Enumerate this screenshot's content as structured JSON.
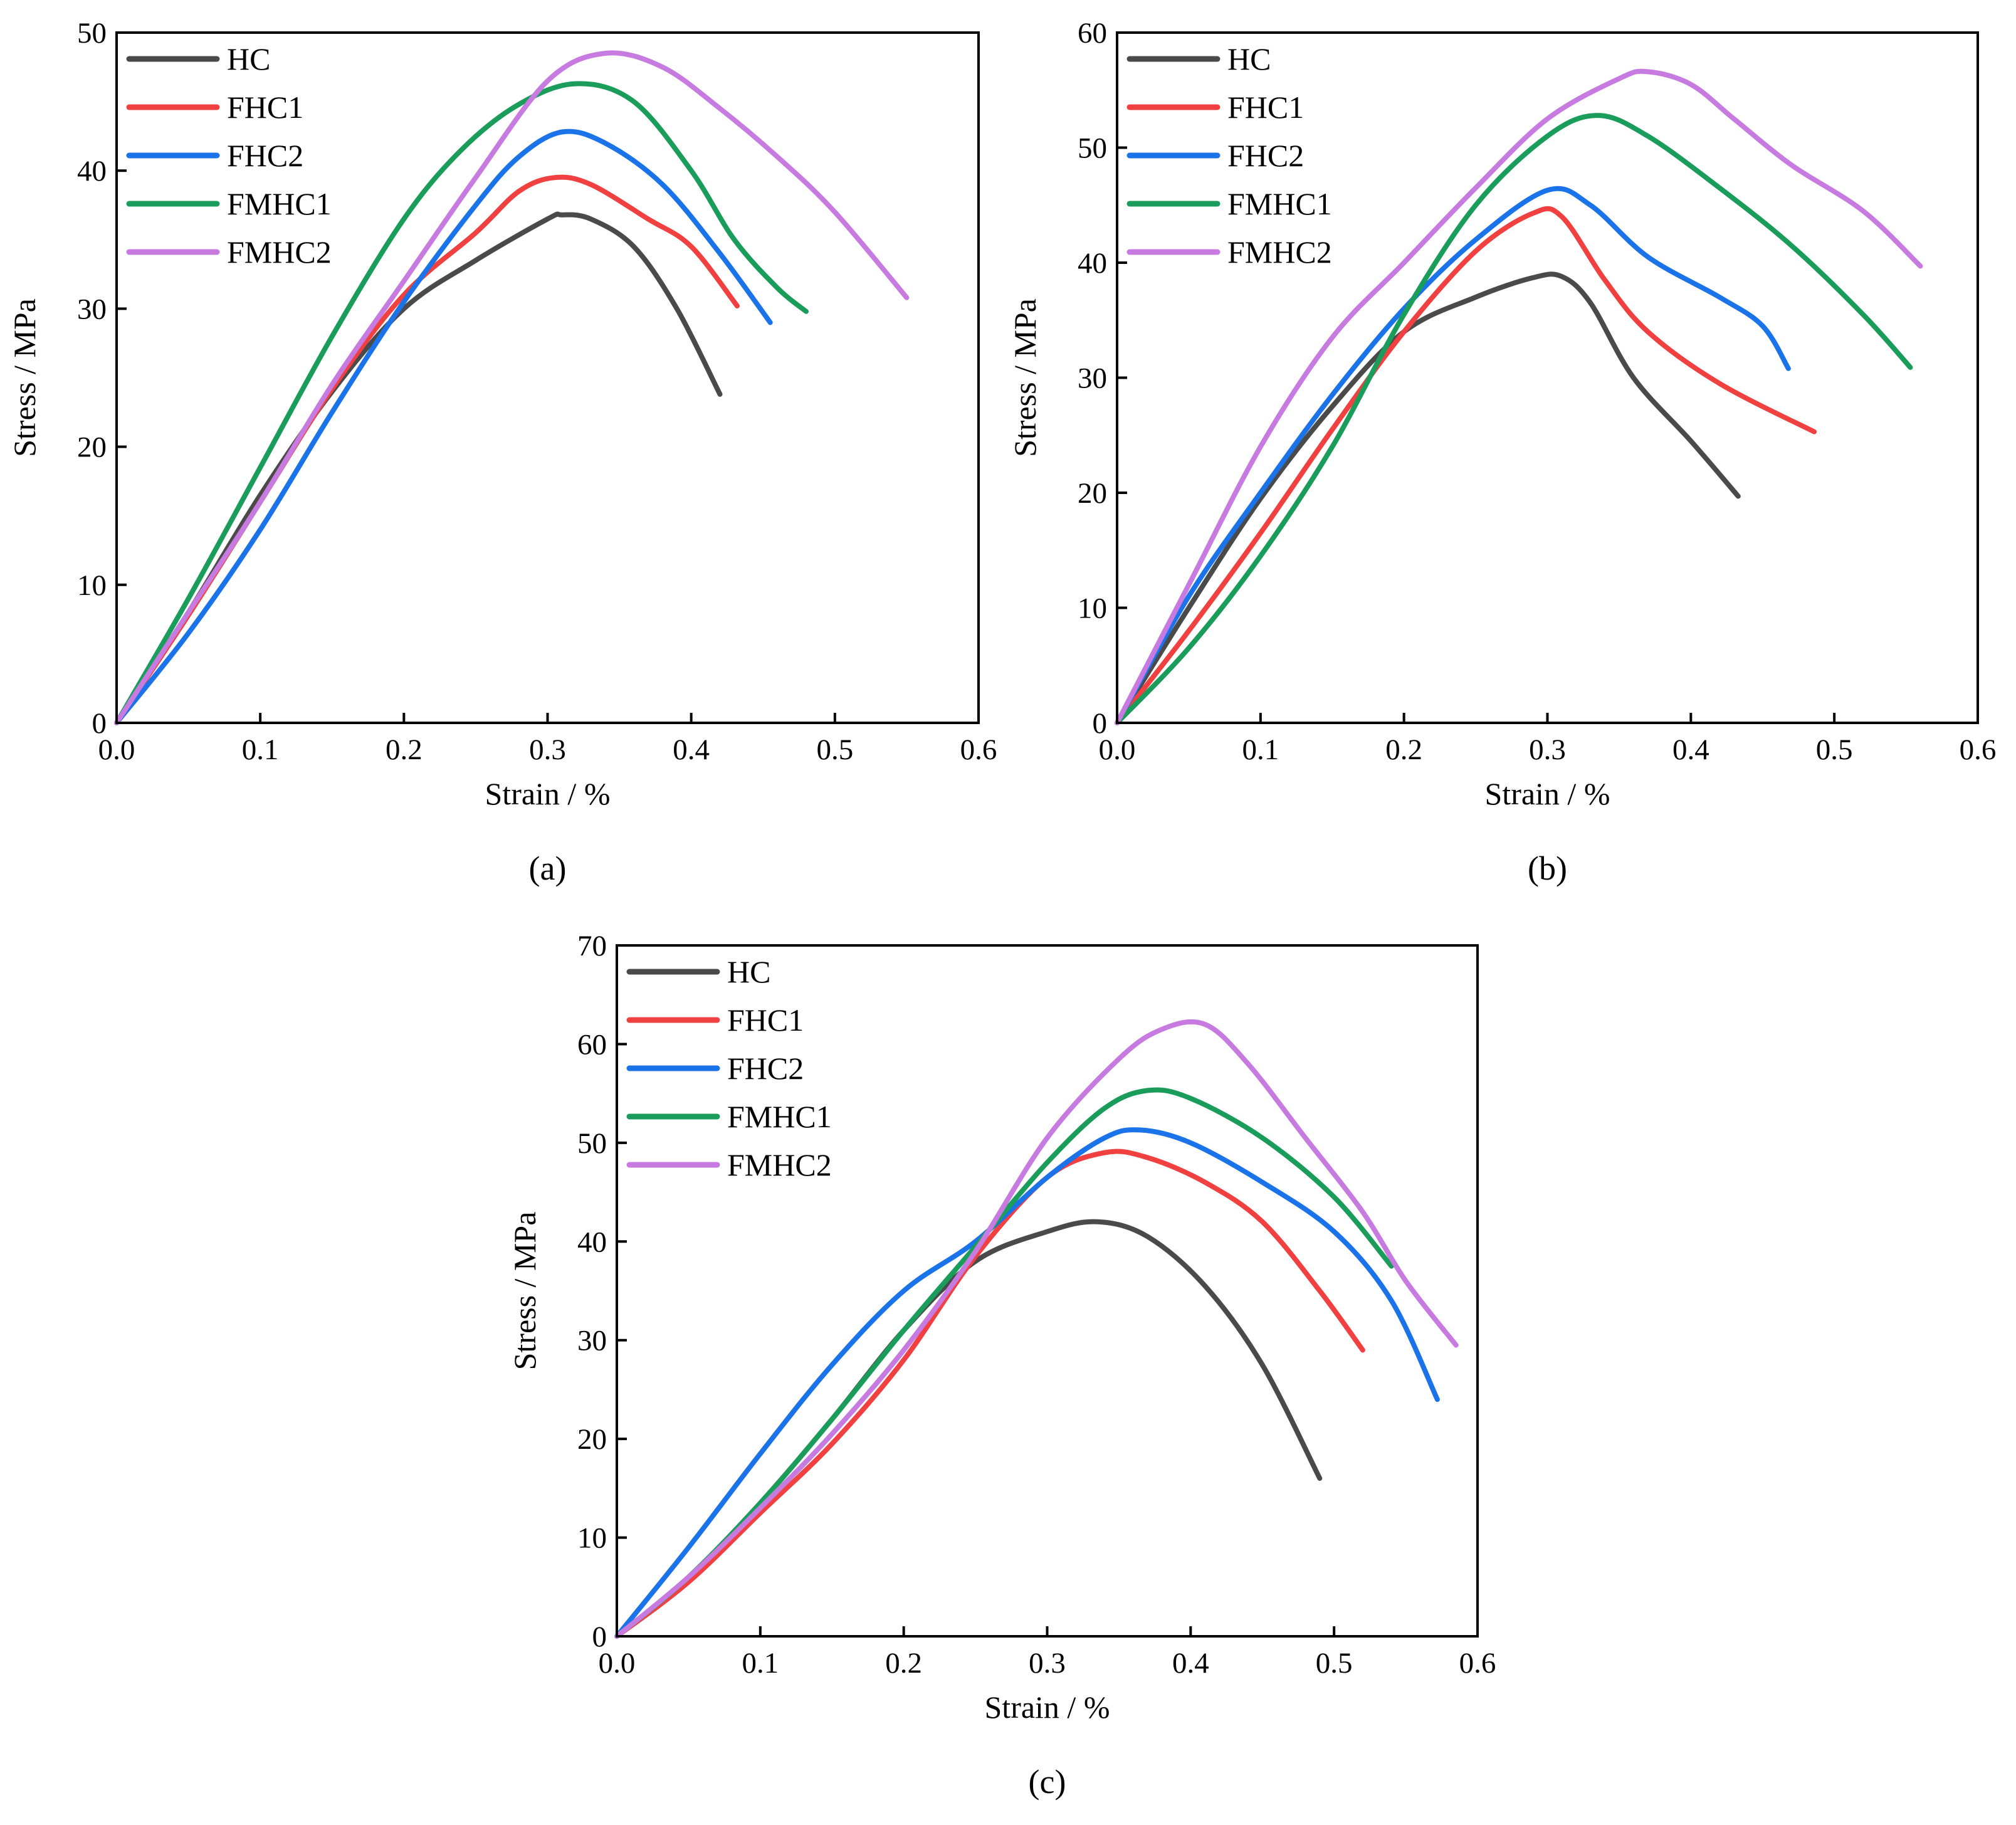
{
  "chart_data": [
    {
      "type": "line",
      "panel_label": "(a)",
      "xlabel": "Strain  / %",
      "ylabel": "Stress / MPa",
      "xlim": [
        0,
        0.6
      ],
      "ylim": [
        0,
        50
      ],
      "xticks": [
        0.0,
        0.1,
        0.2,
        0.3,
        0.4,
        0.5,
        0.6
      ],
      "yticks": [
        0,
        10,
        20,
        30,
        40,
        50
      ],
      "legend_position": "top-left",
      "series": [
        {
          "name": "HC",
          "color": "#4a4a4a",
          "points": [
            [
              0,
              0
            ],
            [
              0.05,
              8
            ],
            [
              0.1,
              16.5
            ],
            [
              0.15,
              24
            ],
            [
              0.2,
              30
            ],
            [
              0.25,
              33.5
            ],
            [
              0.3,
              36.5
            ],
            [
              0.31,
              36.8
            ],
            [
              0.33,
              36.5
            ],
            [
              0.36,
              34.5
            ],
            [
              0.39,
              30
            ],
            [
              0.42,
              23.8
            ]
          ]
        },
        {
          "name": "FHC1",
          "color": "#f04040",
          "points": [
            [
              0,
              0
            ],
            [
              0.05,
              7.8
            ],
            [
              0.1,
              16
            ],
            [
              0.15,
              24.2
            ],
            [
              0.2,
              31
            ],
            [
              0.25,
              35.5
            ],
            [
              0.28,
              38.5
            ],
            [
              0.305,
              39.5
            ],
            [
              0.33,
              39
            ],
            [
              0.37,
              36.5
            ],
            [
              0.4,
              34.5
            ],
            [
              0.432,
              30.2
            ]
          ]
        },
        {
          "name": "FHC2",
          "color": "#1a73e8",
          "points": [
            [
              0,
              0
            ],
            [
              0.05,
              6.5
            ],
            [
              0.1,
              14
            ],
            [
              0.15,
              22.5
            ],
            [
              0.2,
              30.5
            ],
            [
              0.25,
              37.5
            ],
            [
              0.28,
              41
            ],
            [
              0.31,
              42.8
            ],
            [
              0.34,
              42
            ],
            [
              0.38,
              39
            ],
            [
              0.42,
              34
            ],
            [
              0.455,
              29
            ]
          ]
        },
        {
          "name": "FMHC1",
          "color": "#1a9c5a",
          "points": [
            [
              0,
              0
            ],
            [
              0.05,
              9
            ],
            [
              0.1,
              18.5
            ],
            [
              0.15,
              28
            ],
            [
              0.2,
              36.5
            ],
            [
              0.24,
              41.5
            ],
            [
              0.28,
              44.8
            ],
            [
              0.32,
              46.3
            ],
            [
              0.36,
              45
            ],
            [
              0.4,
              40
            ],
            [
              0.43,
              35
            ],
            [
              0.46,
              31.5
            ],
            [
              0.48,
              29.8
            ]
          ]
        },
        {
          "name": "FMHC2",
          "color": "#c77be0",
          "points": [
            [
              0,
              0
            ],
            [
              0.05,
              8
            ],
            [
              0.1,
              16
            ],
            [
              0.15,
              24.5
            ],
            [
              0.2,
              32
            ],
            [
              0.25,
              39.5
            ],
            [
              0.3,
              46.5
            ],
            [
              0.34,
              48.5
            ],
            [
              0.38,
              47.5
            ],
            [
              0.42,
              44.5
            ],
            [
              0.46,
              41
            ],
            [
              0.5,
              37
            ],
            [
              0.55,
              30.8
            ]
          ]
        }
      ]
    },
    {
      "type": "line",
      "panel_label": "(b)",
      "xlabel": "Strain  / %",
      "ylabel": "Stress / MPa",
      "xlim": [
        0,
        0.6
      ],
      "ylim": [
        0,
        60
      ],
      "xticks": [
        0.0,
        0.1,
        0.2,
        0.3,
        0.4,
        0.5,
        0.6
      ],
      "yticks": [
        0,
        10,
        20,
        30,
        40,
        50,
        60
      ],
      "legend_position": "top-left",
      "series": [
        {
          "name": "HC",
          "color": "#4a4a4a",
          "points": [
            [
              0,
              0
            ],
            [
              0.05,
              10
            ],
            [
              0.1,
              19.5
            ],
            [
              0.15,
              27.5
            ],
            [
              0.2,
              34
            ],
            [
              0.25,
              37
            ],
            [
              0.29,
              38.7
            ],
            [
              0.31,
              38.8
            ],
            [
              0.33,
              36.5
            ],
            [
              0.36,
              30
            ],
            [
              0.4,
              24.5
            ],
            [
              0.433,
              19.7
            ]
          ]
        },
        {
          "name": "FHC1",
          "color": "#f04040",
          "points": [
            [
              0,
              0
            ],
            [
              0.05,
              8
            ],
            [
              0.1,
              16.5
            ],
            [
              0.15,
              25.5
            ],
            [
              0.2,
              34
            ],
            [
              0.25,
              41
            ],
            [
              0.29,
              44.3
            ],
            [
              0.31,
              44
            ],
            [
              0.34,
              38.5
            ],
            [
              0.37,
              34
            ],
            [
              0.42,
              29.5
            ],
            [
              0.486,
              25.3
            ]
          ]
        },
        {
          "name": "FHC2",
          "color": "#1a73e8",
          "points": [
            [
              0,
              0
            ],
            [
              0.05,
              11
            ],
            [
              0.1,
              20
            ],
            [
              0.15,
              28.5
            ],
            [
              0.2,
              36
            ],
            [
              0.25,
              42
            ],
            [
              0.3,
              46.3
            ],
            [
              0.33,
              45
            ],
            [
              0.37,
              40.5
            ],
            [
              0.42,
              37
            ],
            [
              0.45,
              34.5
            ],
            [
              0.468,
              30.8
            ]
          ]
        },
        {
          "name": "FMHC1",
          "color": "#1a9c5a",
          "points": [
            [
              0,
              0
            ],
            [
              0.05,
              6.5
            ],
            [
              0.1,
              14.5
            ],
            [
              0.15,
              24
            ],
            [
              0.2,
              35.5
            ],
            [
              0.25,
              45
            ],
            [
              0.3,
              51
            ],
            [
              0.335,
              52.8
            ],
            [
              0.37,
              51
            ],
            [
              0.42,
              46.5
            ],
            [
              0.47,
              41.5
            ],
            [
              0.52,
              35.5
            ],
            [
              0.553,
              30.9
            ]
          ]
        },
        {
          "name": "FMHC2",
          "color": "#c77be0",
          "points": [
            [
              0,
              0
            ],
            [
              0.05,
              12
            ],
            [
              0.1,
              24
            ],
            [
              0.15,
              33.5
            ],
            [
              0.2,
              40
            ],
            [
              0.25,
              46.5
            ],
            [
              0.3,
              52.5
            ],
            [
              0.35,
              56
            ],
            [
              0.37,
              56.6
            ],
            [
              0.4,
              55.5
            ],
            [
              0.43,
              52.5
            ],
            [
              0.47,
              48.5
            ],
            [
              0.52,
              44.5
            ],
            [
              0.56,
              39.7
            ]
          ]
        }
      ]
    },
    {
      "type": "line",
      "panel_label": "(c)",
      "xlabel": "Strain  / %",
      "ylabel": "Stress / MPa",
      "xlim": [
        0,
        0.6
      ],
      "ylim": [
        0,
        70
      ],
      "xticks": [
        0.0,
        0.1,
        0.2,
        0.3,
        0.4,
        0.5,
        0.6
      ],
      "yticks": [
        0,
        10,
        20,
        30,
        40,
        50,
        60,
        70
      ],
      "legend_position": "top-left",
      "series": [
        {
          "name": "HC",
          "color": "#4a4a4a",
          "points": [
            [
              0,
              0
            ],
            [
              0.05,
              6
            ],
            [
              0.1,
              13.5
            ],
            [
              0.15,
              22
            ],
            [
              0.2,
              31
            ],
            [
              0.25,
              38
            ],
            [
              0.3,
              41
            ],
            [
              0.335,
              42
            ],
            [
              0.37,
              40.5
            ],
            [
              0.41,
              35.5
            ],
            [
              0.45,
              27.5
            ],
            [
              0.49,
              16
            ]
          ]
        },
        {
          "name": "FHC1",
          "color": "#f04040",
          "points": [
            [
              0,
              0
            ],
            [
              0.05,
              5.5
            ],
            [
              0.1,
              12.5
            ],
            [
              0.15,
              19.5
            ],
            [
              0.2,
              28
            ],
            [
              0.25,
              38.5
            ],
            [
              0.3,
              46.5
            ],
            [
              0.34,
              49
            ],
            [
              0.37,
              48.5
            ],
            [
              0.41,
              46
            ],
            [
              0.45,
              42
            ],
            [
              0.49,
              35
            ],
            [
              0.52,
              29
            ]
          ]
        },
        {
          "name": "FHC2",
          "color": "#1a73e8",
          "points": [
            [
              0,
              0
            ],
            [
              0.05,
              9
            ],
            [
              0.1,
              18.5
            ],
            [
              0.15,
              27.5
            ],
            [
              0.2,
              35
            ],
            [
              0.25,
              40
            ],
            [
              0.3,
              46.5
            ],
            [
              0.34,
              50.5
            ],
            [
              0.365,
              51.3
            ],
            [
              0.4,
              50
            ],
            [
              0.45,
              46
            ],
            [
              0.5,
              41
            ],
            [
              0.54,
              34
            ],
            [
              0.572,
              24
            ]
          ]
        },
        {
          "name": "FMHC1",
          "color": "#1a9c5a",
          "points": [
            [
              0,
              0
            ],
            [
              0.05,
              6
            ],
            [
              0.1,
              13.5
            ],
            [
              0.15,
              22
            ],
            [
              0.2,
              31
            ],
            [
              0.25,
              39.5
            ],
            [
              0.3,
              48
            ],
            [
              0.34,
              53.5
            ],
            [
              0.37,
              55.3
            ],
            [
              0.4,
              54.5
            ],
            [
              0.45,
              50.5
            ],
            [
              0.5,
              44.5
            ],
            [
              0.54,
              37.5
            ]
          ]
        },
        {
          "name": "FMHC2",
          "color": "#c77be0",
          "points": [
            [
              0,
              0
            ],
            [
              0.05,
              6
            ],
            [
              0.1,
              13
            ],
            [
              0.15,
              20.5
            ],
            [
              0.2,
              29
            ],
            [
              0.25,
              39
            ],
            [
              0.3,
              50.5
            ],
            [
              0.35,
              58.5
            ],
            [
              0.38,
              61.5
            ],
            [
              0.41,
              62
            ],
            [
              0.44,
              58
            ],
            [
              0.48,
              50.5
            ],
            [
              0.52,
              43
            ],
            [
              0.55,
              36
            ],
            [
              0.585,
              29.5
            ]
          ]
        }
      ]
    }
  ]
}
